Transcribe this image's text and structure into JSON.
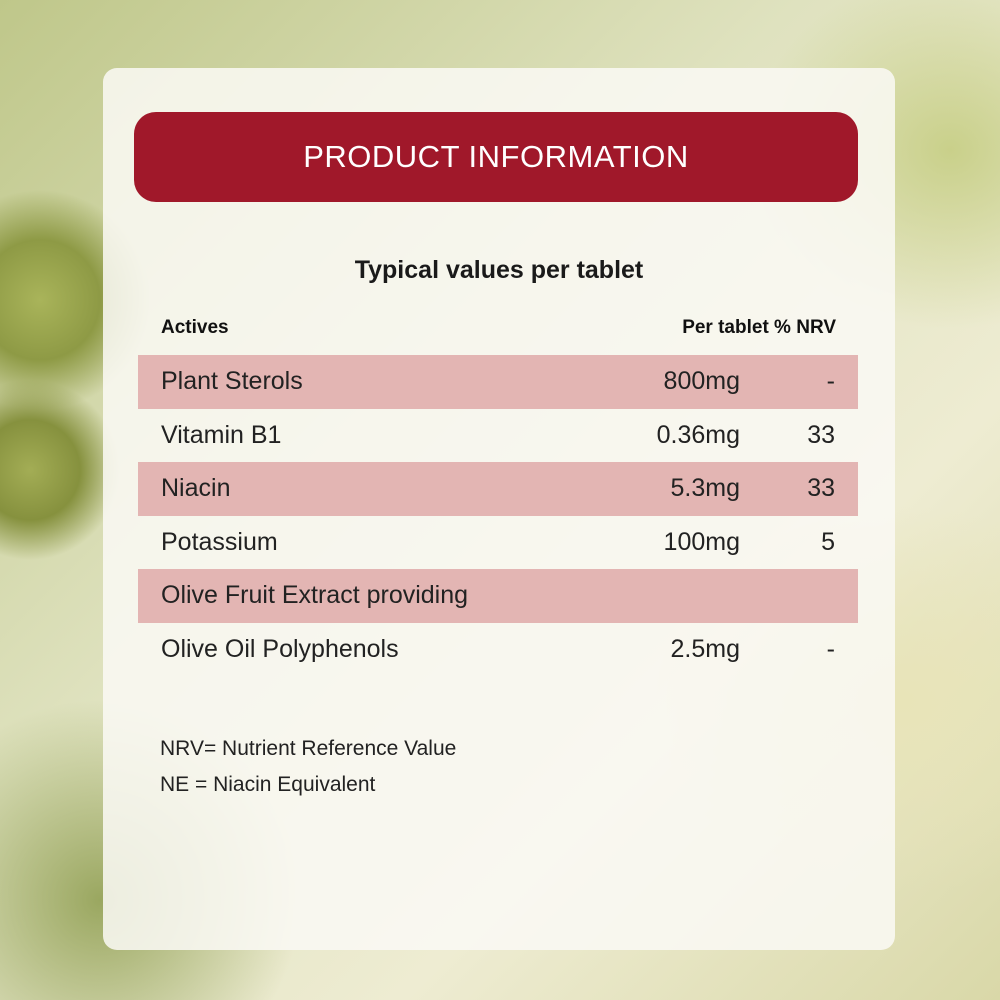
{
  "header": {
    "title": "PRODUCT INFORMATION"
  },
  "subtitle": "Typical values per tablet",
  "columns": {
    "actives": "Actives",
    "per_tablet_nrv": "Per tablet % NRV"
  },
  "rows": [
    {
      "name": "Plant Sterols",
      "value": "800mg",
      "nrv": "-"
    },
    {
      "name": "Vitamin B1",
      "value": "0.36mg",
      "nrv": "33"
    },
    {
      "name": "Niacin",
      "value": "5.3mg",
      "nrv": "33"
    },
    {
      "name": "Potassium",
      "value": "100mg",
      "nrv": "5"
    },
    {
      "name": "Olive Fruit Extract providing",
      "value": "",
      "nrv": ""
    },
    {
      "name": "Olive Oil Polyphenols",
      "value": "2.5mg",
      "nrv": "-"
    }
  ],
  "footnotes": [
    "NRV= Nutrient Reference Value",
    "NE = Niacin Equivalent"
  ],
  "colors": {
    "header": "#a0182a",
    "row_shade": "#e3b5b3"
  }
}
